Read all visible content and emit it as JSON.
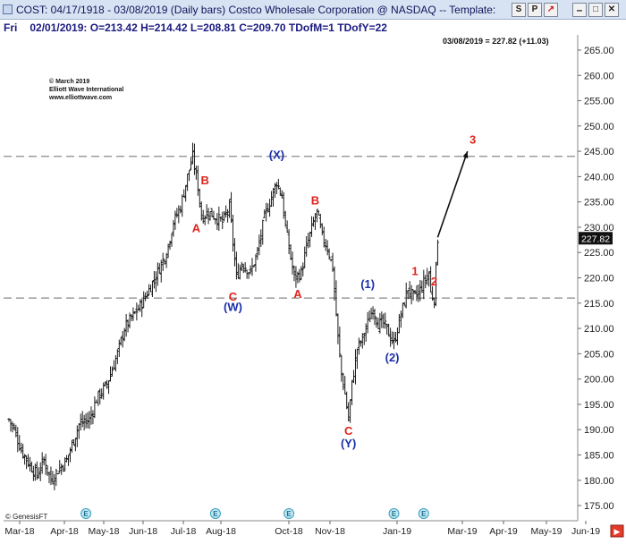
{
  "window": {
    "title": "COST: 04/17/1918 - 03/08/2019  (Daily bars)  Costco Wholesale Corporation @ NASDAQ  --  Template:",
    "buttons": [
      "S",
      "P",
      "↗"
    ]
  },
  "info": {
    "day": "Fri",
    "text": "02/01/2019:  O=213.42  H=214.42  L=208.81  C=209.70  TDofM=1  TDofY=22"
  },
  "copyright": {
    "line1": "© March 2019",
    "line2": "Elliott Wave International",
    "line3": "www.elliottwave.com"
  },
  "source_label": "© GenesisFT",
  "last_price_note": "03/08/2019 = 227.82 (+11.03)",
  "last_price_tag": "227.82",
  "chart_data": {
    "type": "bar",
    "ylim": [
      172,
      268
    ],
    "y_ticks": [
      175,
      180,
      185,
      190,
      195,
      200,
      205,
      210,
      215,
      220,
      225,
      230,
      235,
      240,
      245,
      250,
      255,
      260,
      265
    ],
    "x_months": [
      "Mar-18",
      "Apr-18",
      "May-18",
      "Jun-18",
      "Jul-18",
      "Aug-18",
      "Oct-18",
      "Nov-18",
      "Jan-19",
      "Mar-19",
      "Apr-19",
      "May-19",
      "Jun-19"
    ],
    "guide_lines": [
      244,
      216
    ],
    "price_series": [
      [
        0,
        192
      ],
      [
        3,
        190
      ],
      [
        7,
        186
      ],
      [
        12,
        183
      ],
      [
        16,
        181
      ],
      [
        20,
        184
      ],
      [
        24,
        180
      ],
      [
        28,
        182
      ],
      [
        33,
        184
      ],
      [
        36,
        187
      ],
      [
        40,
        191
      ],
      [
        46,
        192
      ],
      [
        50,
        196
      ],
      [
        56,
        199
      ],
      [
        62,
        205
      ],
      [
        66,
        210
      ],
      [
        72,
        213
      ],
      [
        76,
        215
      ],
      [
        82,
        219
      ],
      [
        86,
        222
      ],
      [
        90,
        225
      ],
      [
        94,
        231
      ],
      [
        98,
        234
      ],
      [
        102,
        240
      ],
      [
        105,
        244
      ],
      [
        108,
        238
      ],
      [
        110,
        232
      ],
      [
        114,
        233
      ],
      [
        118,
        232
      ],
      [
        122,
        231
      ],
      [
        126,
        234
      ],
      [
        128,
        227
      ],
      [
        130,
        220
      ],
      [
        133,
        223
      ],
      [
        138,
        221
      ],
      [
        142,
        225
      ],
      [
        146,
        232
      ],
      [
        150,
        236
      ],
      [
        153,
        239
      ],
      [
        156,
        236
      ],
      [
        158,
        230
      ],
      [
        160,
        226
      ],
      [
        163,
        220
      ],
      [
        167,
        221
      ],
      [
        170,
        226
      ],
      [
        174,
        231
      ],
      [
        176,
        233
      ],
      [
        179,
        228
      ],
      [
        182,
        226
      ],
      [
        185,
        222
      ],
      [
        188,
        208
      ],
      [
        190,
        201
      ],
      [
        192,
        197
      ],
      [
        194,
        192
      ],
      [
        196,
        199
      ],
      [
        199,
        206
      ],
      [
        202,
        208
      ],
      [
        206,
        212
      ],
      [
        208,
        214
      ],
      [
        211,
        211
      ],
      [
        214,
        211
      ],
      [
        217,
        209
      ],
      [
        220,
        207
      ],
      [
        222,
        210
      ],
      [
        225,
        214
      ],
      [
        228,
        218
      ],
      [
        231,
        216
      ],
      [
        234,
        217
      ],
      [
        237,
        219
      ],
      [
        240,
        221
      ],
      [
        241,
        217
      ],
      [
        243,
        216
      ],
      [
        245,
        227.82
      ]
    ],
    "wave_labels": [
      {
        "text": "(X)",
        "x": 153,
        "y": 243.5,
        "color": "#1c2fa8"
      },
      {
        "text": "B",
        "x": 112,
        "y": 238.5,
        "color": "#e0241d"
      },
      {
        "text": "A",
        "x": 107,
        "y": 229,
        "color": "#e0241d"
      },
      {
        "text": "B",
        "x": 175,
        "y": 234.5,
        "color": "#e0241d"
      },
      {
        "text": "C",
        "x": 128,
        "y": 215.5,
        "color": "#e0241d"
      },
      {
        "text": "(W)",
        "x": 128,
        "y": 213.5,
        "color": "#1c2fa8"
      },
      {
        "text": "A",
        "x": 165,
        "y": 216,
        "color": "#e0241d"
      },
      {
        "text": "(1)",
        "x": 205,
        "y": 218,
        "color": "#1c2fa8"
      },
      {
        "text": "1",
        "x": 232,
        "y": 220.5,
        "color": "#e0241d"
      },
      {
        "text": "2",
        "x": 243,
        "y": 218.5,
        "color": "#e0241d"
      },
      {
        "text": "(2)",
        "x": 219,
        "y": 203.5,
        "color": "#1c2fa8"
      },
      {
        "text": "C",
        "x": 194,
        "y": 189,
        "color": "#e0241d"
      },
      {
        "text": "(Y)",
        "x": 194,
        "y": 186.5,
        "color": "#1c2fa8"
      },
      {
        "text": "3",
        "x": 265,
        "y": 246.5,
        "color": "#e0241d"
      }
    ],
    "arrow": {
      "from": [
        245,
        228
      ],
      "to": [
        262,
        245
      ]
    },
    "event_markers": [
      44,
      118,
      160,
      220,
      237
    ]
  }
}
